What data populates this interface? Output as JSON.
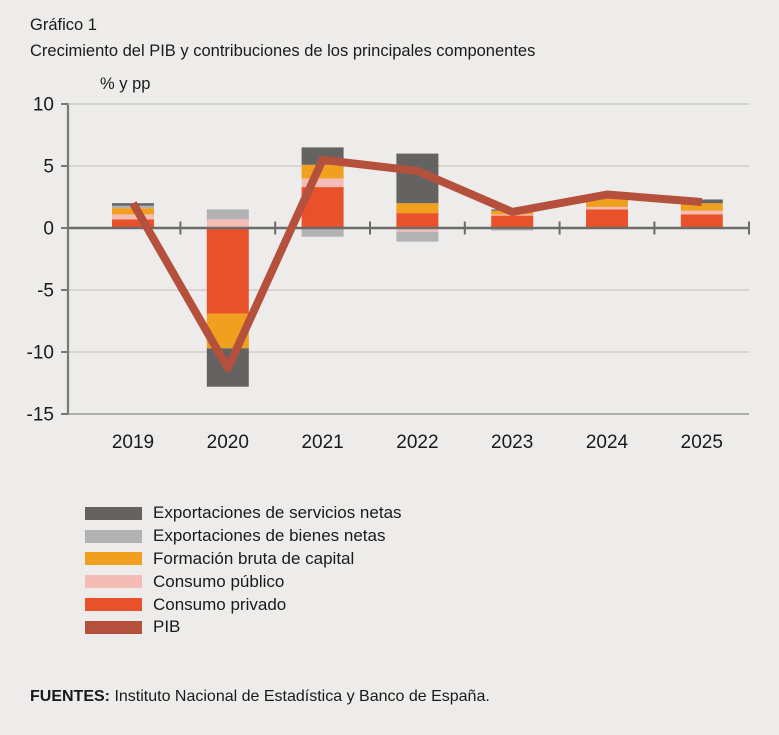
{
  "page": {
    "background": "#edecea"
  },
  "header": {
    "label": "Gráfico 1",
    "title": "Crecimiento del PIB y contribuciones de los principales componentes"
  },
  "chart_data": {
    "type": "bar",
    "subtype": "stacked-bar-with-line-overlay",
    "unit_label": "% y pp",
    "categories": [
      "2019",
      "2020",
      "2021",
      "2022",
      "2023",
      "2024",
      "2025"
    ],
    "series": [
      {
        "name": "Consumo privado",
        "color": "#e8512a",
        "values": [
          0.7,
          -6.9,
          3.3,
          1.2,
          1.0,
          1.5,
          1.1
        ]
      },
      {
        "name": "Consumo público",
        "color": "#f5bcb6",
        "values": [
          0.4,
          0.7,
          0.7,
          -0.3,
          0.1,
          0.2,
          0.3
        ]
      },
      {
        "name": "Formación bruta de capital",
        "color": "#f0a01e",
        "values": [
          0.5,
          -2.8,
          1.1,
          0.8,
          0.3,
          0.7,
          0.6
        ]
      },
      {
        "name": "Exportaciones de bienes netas",
        "color": "#b2b2b2",
        "values": [
          0.2,
          0.8,
          -0.7,
          -0.8,
          -0.2,
          0.1,
          0.0
        ]
      },
      {
        "name": "Exportaciones de servicios netas",
        "color": "#646362",
        "values": [
          0.2,
          -3.1,
          1.4,
          4.0,
          0.1,
          0.2,
          0.3
        ]
      }
    ],
    "line_series": {
      "name": "PIB",
      "color": "#b5503c",
      "values": [
        2.0,
        -11.3,
        5.5,
        4.6,
        1.3,
        2.7,
        2.1
      ]
    },
    "ylim": [
      -15,
      10
    ],
    "yticks": [
      10,
      5,
      0,
      -5,
      -10,
      -15
    ],
    "grid": "horizontal",
    "legend_position": "bottom-left",
    "legend": [
      {
        "label": "Exportaciones de servicios netas",
        "color": "#646362"
      },
      {
        "label": "Exportaciones de bienes netas",
        "color": "#b2b2b2"
      },
      {
        "label": "Formación bruta de capital",
        "color": "#f0a01e"
      },
      {
        "label": "Consumo público",
        "color": "#f5bcb6"
      },
      {
        "label": "Consumo privado",
        "color": "#e8512a"
      },
      {
        "label": "PIB",
        "color": "#b5503c"
      }
    ]
  },
  "footer": {
    "sources_label": "FUENTES:",
    "sources_text": " Instituto Nacional de Estadística y Banco de España."
  }
}
